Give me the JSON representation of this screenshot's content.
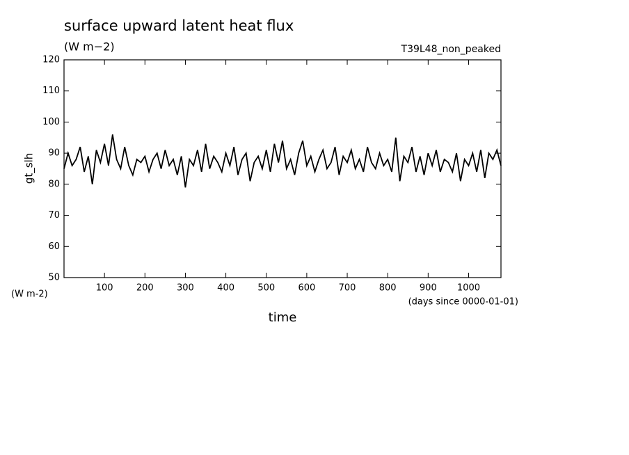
{
  "chart_data": {
    "type": "line",
    "title": "surface upward latent heat flux",
    "units": "(W m−2)",
    "run_name": "T39L48_non_peaked",
    "ylabel": "gt_slh",
    "y_units": "(W m-2)",
    "xlabel": "time",
    "x_units": "(days since 0000-01-01)",
    "xlim": [
      0,
      1080
    ],
    "ylim": [
      50,
      120
    ],
    "xticks": [
      100,
      200,
      300,
      400,
      500,
      600,
      700,
      800,
      900,
      1000
    ],
    "yticks": [
      50,
      60,
      70,
      80,
      90,
      100,
      110,
      120
    ],
    "color": "#000000",
    "x": [
      0,
      10,
      20,
      30,
      40,
      50,
      60,
      70,
      80,
      90,
      100,
      110,
      120,
      130,
      140,
      150,
      160,
      170,
      180,
      190,
      200,
      210,
      220,
      230,
      240,
      250,
      260,
      270,
      280,
      290,
      300,
      310,
      320,
      330,
      340,
      350,
      360,
      370,
      380,
      390,
      400,
      410,
      420,
      430,
      440,
      450,
      460,
      470,
      480,
      490,
      500,
      510,
      520,
      530,
      540,
      550,
      560,
      570,
      580,
      590,
      600,
      610,
      620,
      630,
      640,
      650,
      660,
      670,
      680,
      690,
      700,
      710,
      720,
      730,
      740,
      750,
      760,
      770,
      780,
      790,
      800,
      810,
      820,
      830,
      840,
      850,
      860,
      870,
      880,
      890,
      900,
      910,
      920,
      930,
      940,
      950,
      960,
      970,
      980,
      990,
      1000,
      1010,
      1020,
      1030,
      1040,
      1050,
      1060,
      1070,
      1080
    ],
    "values": [
      85,
      90,
      86,
      88,
      92,
      84,
      89,
      80,
      91,
      87,
      93,
      86,
      96,
      88,
      85,
      92,
      86,
      83,
      88,
      87,
      89,
      84,
      88,
      90,
      85,
      91,
      86,
      88,
      83,
      89,
      79,
      88,
      86,
      91,
      84,
      93,
      85,
      89,
      87,
      84,
      90,
      86,
      92,
      83,
      88,
      90,
      81,
      87,
      89,
      85,
      91,
      84,
      93,
      87,
      94,
      85,
      88,
      83,
      90,
      94,
      86,
      89,
      84,
      88,
      91,
      85,
      87,
      92,
      83,
      89,
      87,
      91,
      85,
      88,
      84,
      92,
      87,
      85,
      90,
      86,
      88,
      84,
      95,
      81,
      89,
      87,
      92,
      84,
      89,
      83,
      90,
      86,
      91,
      84,
      88,
      87,
      84,
      90,
      81,
      88,
      86,
      90,
      84,
      91,
      82,
      90,
      88,
      91,
      86
    ]
  }
}
